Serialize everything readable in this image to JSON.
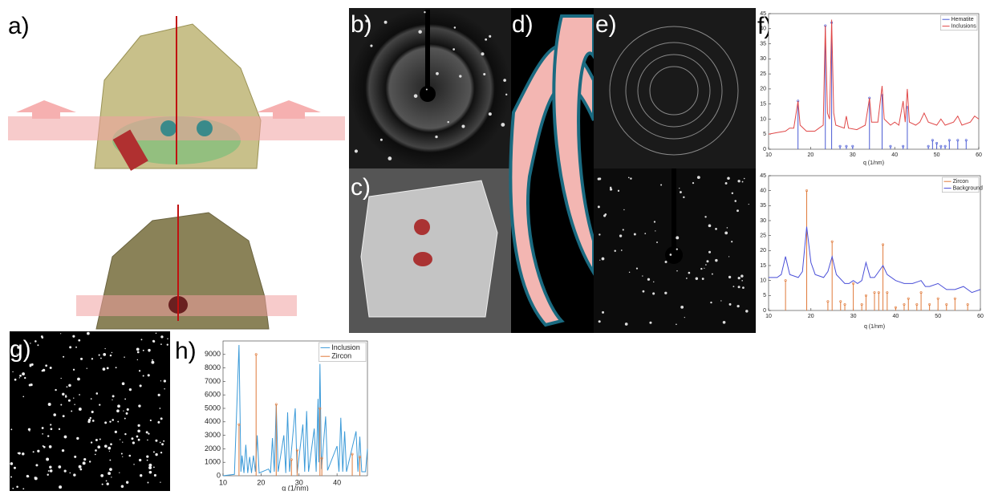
{
  "panel_labels": [
    "a)",
    "b)",
    "c)",
    "d)",
    "e)",
    "f)",
    "g)",
    "h)"
  ],
  "chart_data": [
    {
      "type": "line",
      "xlabel": "q (1/nm)",
      "xlim": [
        10,
        60
      ],
      "ylim": [
        0,
        45
      ],
      "xticks": [
        10,
        20,
        30,
        40,
        50,
        60
      ],
      "yticks": [
        0,
        5,
        10,
        15,
        20,
        25,
        30,
        35,
        40,
        45
      ],
      "legend": "upper right",
      "series": [
        {
          "name": "Hematite",
          "color": "#4a5bd4",
          "style": "stem",
          "x": [
            17,
            23.5,
            25,
            27,
            28.5,
            30,
            34,
            37,
            39,
            42,
            43,
            48,
            49,
            50,
            51,
            52,
            53,
            55,
            57
          ],
          "values": [
            16,
            41,
            42,
            1,
            1,
            1,
            17,
            18,
            1,
            1,
            14,
            1,
            3,
            2,
            1,
            1,
            3,
            3,
            3
          ]
        },
        {
          "name": "Inclusions",
          "color": "#e04848",
          "style": "line",
          "x": [
            10,
            12,
            14,
            15,
            16,
            17,
            17.5,
            19,
            21,
            22,
            23,
            23.5,
            24,
            24.5,
            25,
            25.5,
            26,
            28,
            28.5,
            29,
            31,
            33,
            34,
            34.5,
            36,
            37,
            37.5,
            39,
            40,
            41,
            42,
            42.5,
            43,
            43.5,
            45,
            46,
            47,
            48,
            50,
            51,
            52,
            54,
            55,
            56,
            58,
            59,
            60
          ],
          "values": [
            5,
            5.5,
            6,
            7,
            7,
            16,
            8,
            6,
            6,
            7,
            8,
            41,
            12,
            10,
            43,
            12,
            8,
            7,
            11,
            7,
            6.5,
            8,
            17,
            9,
            9,
            21,
            10,
            8,
            9,
            8,
            16,
            9,
            20,
            9,
            8,
            9,
            12,
            9,
            8,
            10,
            8,
            9,
            11,
            8,
            9,
            11,
            10
          ]
        }
      ]
    },
    {
      "type": "line",
      "xlabel": "q (1/nm)",
      "xlim": [
        10,
        60
      ],
      "ylim": [
        0,
        45
      ],
      "xticks": [
        10,
        20,
        30,
        40,
        50,
        60
      ],
      "yticks": [
        0,
        5,
        10,
        15,
        20,
        25,
        30,
        35,
        40,
        45
      ],
      "legend": "upper right",
      "series": [
        {
          "name": "Zircon",
          "color": "#e07a3a",
          "style": "stem",
          "x": [
            14,
            19,
            24,
            25,
            27,
            28,
            30,
            32,
            33,
            35,
            36,
            37,
            38,
            40,
            42,
            43,
            45,
            46,
            48,
            50,
            52,
            54,
            57
          ],
          "values": [
            10,
            40,
            3,
            23,
            3,
            2,
            9,
            2,
            5,
            6,
            6,
            22,
            6,
            1,
            2,
            4,
            2,
            6,
            2,
            4,
            2,
            4,
            2
          ]
        },
        {
          "name": "Background",
          "color": "#4a4fd8",
          "style": "line",
          "x": [
            10,
            12,
            13,
            14,
            15,
            17,
            18,
            19,
            20,
            21,
            23,
            24,
            25,
            26,
            28,
            29,
            30,
            31,
            32,
            33,
            34,
            35,
            36,
            37,
            38,
            40,
            42,
            44,
            46,
            47,
            48,
            50,
            52,
            54,
            56,
            58,
            60
          ],
          "values": [
            11,
            11,
            12,
            18,
            12,
            11,
            13,
            28,
            16,
            12,
            11,
            13,
            18,
            12,
            9,
            9,
            10,
            9,
            10,
            16,
            11,
            11,
            13,
            15,
            12,
            10,
            9,
            9,
            10,
            8,
            8,
            9,
            7,
            7,
            8,
            6,
            7
          ]
        }
      ]
    },
    {
      "type": "line",
      "xlabel": "q (1/nm)",
      "xlim": [
        10,
        48
      ],
      "ylim": [
        0,
        10000
      ],
      "xticks": [
        10,
        20,
        30,
        40
      ],
      "yticks": [
        0,
        1000,
        2000,
        3000,
        4000,
        5000,
        6000,
        7000,
        8000,
        9000
      ],
      "legend": "upper right",
      "series": [
        {
          "name": "Inclusion",
          "color": "#3b9ad8",
          "style": "line",
          "x": [
            10,
            13,
            14.2,
            14.7,
            15,
            15.5,
            16,
            16.5,
            17,
            17.5,
            18,
            18.5,
            19,
            19.5,
            22,
            22.5,
            23,
            23.5,
            24,
            24.5,
            26,
            26.5,
            27,
            27.5,
            29,
            29.5,
            31,
            31.5,
            32,
            32.5,
            34,
            34.5,
            35,
            35.2,
            35.5,
            35.9,
            37,
            37.5,
            40,
            40.5,
            41,
            41.5,
            42,
            42.5,
            45,
            45.5,
            46,
            46.5,
            47.5,
            48
          ],
          "values": [
            0,
            100,
            9700,
            300,
            1500,
            200,
            2300,
            200,
            1400,
            200,
            1500,
            300,
            3000,
            200,
            500,
            200,
            2800,
            300,
            5300,
            300,
            3000,
            200,
            4700,
            300,
            5000,
            200,
            3800,
            300,
            4800,
            300,
            3500,
            300,
            5700,
            1000,
            8300,
            500,
            4400,
            400,
            2200,
            300,
            4300,
            300,
            3300,
            300,
            3300,
            300,
            2900,
            300,
            300,
            2000
          ]
        },
        {
          "name": "Zircon",
          "color": "#e07a3a",
          "style": "stem",
          "x": [
            14.2,
            18.7,
            24,
            28,
            29.5,
            35.5,
            36,
            44,
            46
          ],
          "values": [
            3800,
            9000,
            5300,
            1200,
            1900,
            5000,
            1300,
            1600,
            1400
          ]
        }
      ]
    }
  ]
}
